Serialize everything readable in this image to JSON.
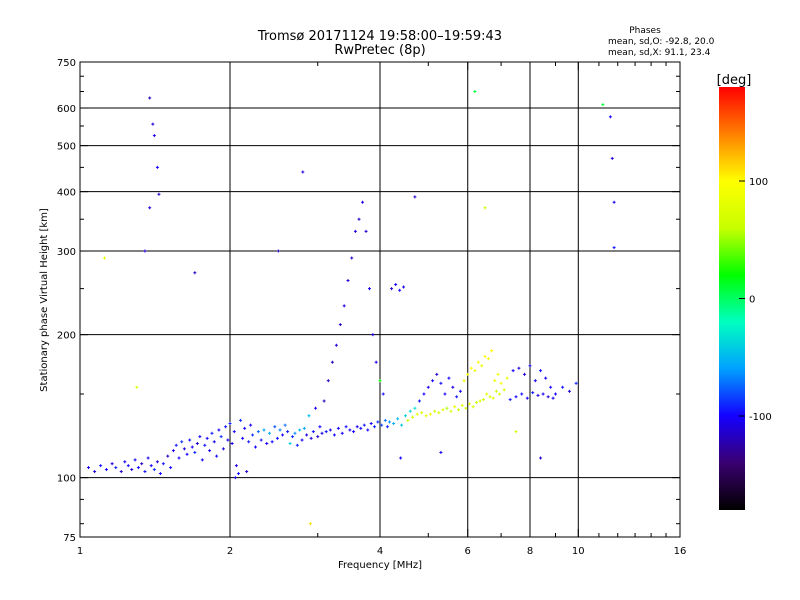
{
  "chart_data": {
    "type": "scatter",
    "title": "Tromsø 20171124 19:58:00–19:59:43",
    "subtitle": "RwPretec (8p)",
    "xlabel": "Frequency [MHz]",
    "ylabel": "Stationary phase Virtual Height [km]",
    "x_scale": "log",
    "y_scale": "log",
    "xlim": [
      1,
      16
    ],
    "ylim": [
      75,
      750
    ],
    "x_ticks": [
      1,
      2,
      4,
      6,
      8,
      10,
      16
    ],
    "y_ticks": [
      75,
      100,
      200,
      300,
      400,
      500,
      600,
      750
    ],
    "x_grid": [
      2,
      4,
      6,
      8,
      10
    ],
    "y_grid": [
      100,
      200,
      300,
      400,
      500,
      600
    ],
    "grid": true,
    "phase_info": {
      "heading": "Phases",
      "line1": "mean, sd,O: -92.8, 20.0",
      "line2": "mean, sd,X:  91.1, 23.4"
    },
    "colorbar": {
      "label": "[deg]",
      "min": -180,
      "max": 180,
      "ticks": [
        100,
        0,
        -100
      ],
      "colors": [
        "#000000",
        "#3a0070",
        "#1400ff",
        "#00a0ff",
        "#00ffc0",
        "#00ff00",
        "#c8ff00",
        "#ffff00",
        "#ff8000",
        "#ff0000"
      ]
    },
    "series": [
      {
        "points": [
          [
            1.04,
            105,
            -105
          ],
          [
            1.07,
            103,
            -110
          ],
          [
            1.1,
            106,
            -95
          ],
          [
            1.13,
            104,
            -100
          ],
          [
            1.16,
            107,
            -108
          ],
          [
            1.18,
            105,
            -92
          ],
          [
            1.21,
            103,
            -115
          ],
          [
            1.23,
            108,
            -100
          ],
          [
            1.25,
            106,
            -97
          ],
          [
            1.27,
            104,
            -112
          ],
          [
            1.29,
            109,
            -103
          ],
          [
            1.31,
            105,
            -99
          ],
          [
            1.33,
            107,
            -118
          ],
          [
            1.35,
            103,
            -95
          ],
          [
            1.37,
            110,
            -106
          ],
          [
            1.39,
            106,
            -101
          ],
          [
            1.41,
            104,
            -90
          ],
          [
            1.43,
            108,
            -114
          ],
          [
            1.45,
            102,
            -100
          ],
          [
            1.47,
            107,
            -95
          ],
          [
            1.5,
            111,
            -120
          ],
          [
            1.52,
            105,
            -98
          ],
          [
            1.54,
            114,
            -108
          ],
          [
            1.56,
            117,
            -94
          ],
          [
            1.58,
            110,
            -102
          ],
          [
            1.6,
            119,
            -88
          ],
          [
            1.62,
            115,
            -110
          ],
          [
            1.64,
            112,
            -100
          ],
          [
            1.66,
            120,
            -96
          ],
          [
            1.68,
            116,
            -105
          ],
          [
            1.7,
            113,
            -90
          ],
          [
            1.72,
            118,
            -112
          ],
          [
            1.74,
            122,
            -99
          ],
          [
            1.76,
            109,
            -104
          ],
          [
            1.78,
            117,
            -95
          ],
          [
            1.8,
            121,
            -101
          ],
          [
            1.82,
            114,
            -108
          ],
          [
            1.84,
            124,
            -93
          ],
          [
            1.86,
            119,
            -106
          ],
          [
            1.88,
            111,
            -97
          ],
          [
            1.9,
            126,
            -102
          ],
          [
            1.92,
            122,
            -88
          ],
          [
            1.94,
            115,
            -110
          ],
          [
            1.96,
            128,
            -95
          ],
          [
            1.98,
            120,
            -100
          ],
          [
            2.0,
            130,
            -92
          ],
          [
            2.02,
            118,
            -105
          ],
          [
            2.04,
            125,
            -98
          ],
          [
            2.06,
            106,
            -108
          ],
          [
            2.08,
            102,
            -96
          ],
          [
            2.1,
            132,
            -90
          ],
          [
            2.12,
            121,
            -103
          ],
          [
            2.14,
            127,
            -99
          ],
          [
            2.16,
            103,
            -110
          ],
          [
            2.18,
            119,
            -94
          ],
          [
            2.2,
            129,
            -101
          ],
          [
            2.22,
            123,
            -87
          ],
          [
            2.25,
            116,
            -100
          ],
          [
            2.28,
            125,
            -75
          ],
          [
            2.31,
            120,
            -93
          ],
          [
            2.34,
            126,
            -60
          ],
          [
            2.37,
            118,
            -105
          ],
          [
            2.4,
            124,
            -55
          ],
          [
            2.43,
            119,
            -98
          ],
          [
            2.46,
            128,
            -80
          ],
          [
            2.49,
            121,
            -96
          ],
          [
            2.52,
            126,
            -68
          ],
          [
            2.55,
            123,
            -102
          ],
          [
            2.58,
            129,
            -72
          ],
          [
            2.61,
            125,
            -95
          ],
          [
            2.64,
            118,
            -40
          ],
          [
            2.67,
            122,
            -88
          ],
          [
            2.7,
            124,
            -65
          ],
          [
            2.73,
            117,
            -92
          ],
          [
            2.76,
            126,
            -50
          ],
          [
            2.79,
            120,
            -99
          ],
          [
            2.82,
            127,
            -58
          ],
          [
            2.85,
            123,
            -104
          ],
          [
            2.88,
            135,
            -48
          ],
          [
            2.91,
            121,
            -110
          ],
          [
            2.94,
            125,
            -95
          ],
          [
            2.97,
            140,
            -105
          ],
          [
            3.0,
            122,
            -115
          ],
          [
            3.03,
            128,
            -100
          ],
          [
            3.06,
            124,
            -108
          ],
          [
            3.09,
            145,
            -120
          ],
          [
            3.12,
            125,
            -95
          ],
          [
            3.15,
            160,
            -112
          ],
          [
            3.18,
            126,
            -104
          ],
          [
            3.21,
            175,
            -118
          ],
          [
            3.24,
            123,
            -98
          ],
          [
            3.27,
            190,
            -110
          ],
          [
            3.3,
            127,
            -102
          ],
          [
            3.33,
            210,
            -116
          ],
          [
            3.36,
            124,
            -100
          ],
          [
            3.39,
            230,
            -108
          ],
          [
            3.42,
            128,
            -96
          ],
          [
            3.45,
            260,
            -112
          ],
          [
            3.48,
            126,
            -105
          ],
          [
            3.51,
            290,
            -115
          ],
          [
            3.54,
            125,
            -99
          ],
          [
            3.57,
            330,
            -110
          ],
          [
            3.6,
            128,
            -103
          ],
          [
            3.63,
            350,
            -118
          ],
          [
            3.66,
            127,
            -100
          ],
          [
            3.69,
            380,
            -107
          ],
          [
            3.72,
            129,
            -95
          ],
          [
            3.75,
            330,
            -112
          ],
          [
            3.78,
            126,
            -102
          ],
          [
            3.81,
            250,
            -104
          ],
          [
            3.84,
            130,
            -98
          ],
          [
            3.87,
            200,
            -109
          ],
          [
            3.9,
            128,
            -92
          ],
          [
            3.93,
            175,
            -105
          ],
          [
            3.96,
            131,
            -88
          ],
          [
            4.0,
            160,
            20
          ],
          [
            4.03,
            129,
            -80
          ],
          [
            4.06,
            150,
            -96
          ],
          [
            4.1,
            132,
            -70
          ],
          [
            4.14,
            128,
            -90
          ],
          [
            4.18,
            131,
            -62
          ],
          [
            4.22,
            250,
            -110
          ],
          [
            4.26,
            130,
            -55
          ],
          [
            4.3,
            255,
            -102
          ],
          [
            4.34,
            133,
            -50
          ],
          [
            4.38,
            248,
            -98
          ],
          [
            4.42,
            129,
            -45
          ],
          [
            4.46,
            252,
            -105
          ],
          [
            4.5,
            135,
            -40
          ],
          [
            4.55,
            132,
            60
          ],
          [
            4.6,
            138,
            -35
          ],
          [
            4.65,
            134,
            70
          ],
          [
            4.7,
            140,
            -30
          ],
          [
            4.75,
            136,
            80
          ],
          [
            4.8,
            145,
            -95
          ],
          [
            4.85,
            137,
            75
          ],
          [
            4.9,
            150,
            -100
          ],
          [
            4.95,
            135,
            85
          ],
          [
            5.0,
            155,
            -105
          ],
          [
            5.05,
            136,
            90
          ],
          [
            5.1,
            160,
            -98
          ],
          [
            5.15,
            138,
            65
          ],
          [
            5.2,
            165,
            -110
          ],
          [
            5.25,
            137,
            72
          ],
          [
            5.3,
            158,
            -96
          ],
          [
            5.35,
            139,
            80
          ],
          [
            5.4,
            150,
            -104
          ],
          [
            5.45,
            140,
            55
          ],
          [
            5.5,
            162,
            -100
          ],
          [
            5.55,
            138,
            70
          ],
          [
            5.6,
            155,
            -108
          ],
          [
            5.65,
            141,
            85
          ],
          [
            5.7,
            148,
            -95
          ],
          [
            5.75,
            139,
            60
          ],
          [
            5.8,
            152,
            -102
          ],
          [
            5.85,
            142,
            78
          ],
          [
            5.9,
            160,
            90
          ],
          [
            5.95,
            140,
            65
          ],
          [
            6.0,
            165,
            95
          ],
          [
            6.05,
            143,
            82
          ],
          [
            6.1,
            170,
            100
          ],
          [
            6.15,
            141,
            70
          ],
          [
            6.2,
            168,
            92
          ],
          [
            6.25,
            144,
            60
          ],
          [
            6.3,
            175,
            98
          ],
          [
            6.35,
            145,
            75
          ],
          [
            6.4,
            172,
            88
          ],
          [
            6.45,
            146,
            66
          ],
          [
            6.5,
            180,
            100
          ],
          [
            6.55,
            150,
            80
          ],
          [
            6.6,
            178,
            94
          ],
          [
            6.65,
            148,
            70
          ],
          [
            6.7,
            185,
            97
          ],
          [
            6.75,
            147,
            85
          ],
          [
            6.8,
            160,
            90
          ],
          [
            6.85,
            152,
            60
          ],
          [
            6.9,
            165,
            88
          ],
          [
            6.95,
            150,
            75
          ],
          [
            7.0,
            158,
            95
          ],
          [
            7.1,
            153,
            70
          ],
          [
            7.2,
            162,
            85
          ],
          [
            7.3,
            146,
            -95
          ],
          [
            7.4,
            168,
            -100
          ],
          [
            7.5,
            148,
            -102
          ],
          [
            7.6,
            170,
            -108
          ],
          [
            7.7,
            150,
            -96
          ],
          [
            7.8,
            165,
            -110
          ],
          [
            7.9,
            147,
            -99
          ],
          [
            8.0,
            172,
            -104
          ],
          [
            8.1,
            151,
            -94
          ],
          [
            8.2,
            160,
            -100
          ],
          [
            8.3,
            149,
            -108
          ],
          [
            8.4,
            168,
            -96
          ],
          [
            8.5,
            150,
            -105
          ],
          [
            8.6,
            162,
            -100
          ],
          [
            8.7,
            148,
            -110
          ],
          [
            8.8,
            155,
            -98
          ],
          [
            8.9,
            147,
            -104
          ],
          [
            9.0,
            150,
            -100
          ],
          [
            9.3,
            155,
            -95
          ],
          [
            9.6,
            152,
            -108
          ],
          [
            9.9,
            158,
            -90
          ],
          [
            1.38,
            630,
            -120
          ],
          [
            1.4,
            555,
            -110
          ],
          [
            1.41,
            525,
            -105
          ],
          [
            1.43,
            450,
            -100
          ],
          [
            1.44,
            395,
            -115
          ],
          [
            1.35,
            300,
            -108
          ],
          [
            1.38,
            370,
            -112
          ],
          [
            11.6,
            575,
            -100
          ],
          [
            11.7,
            470,
            -110
          ],
          [
            11.8,
            380,
            -105
          ],
          [
            11.8,
            305,
            -95
          ],
          [
            11.2,
            610,
            10
          ],
          [
            6.2,
            650,
            10
          ],
          [
            2.8,
            440,
            -110
          ],
          [
            1.7,
            270,
            -115
          ],
          [
            2.5,
            300,
            -120
          ],
          [
            4.7,
            390,
            -110
          ],
          [
            6.5,
            370,
            60
          ],
          [
            1.12,
            290,
            80
          ],
          [
            1.3,
            155,
            70
          ],
          [
            2.05,
            100,
            -108
          ],
          [
            2.9,
            80,
            110
          ],
          [
            4.4,
            110,
            -100
          ],
          [
            5.3,
            113,
            -105
          ],
          [
            7.5,
            125,
            70
          ],
          [
            8.4,
            110,
            -110
          ]
        ]
      }
    ]
  }
}
